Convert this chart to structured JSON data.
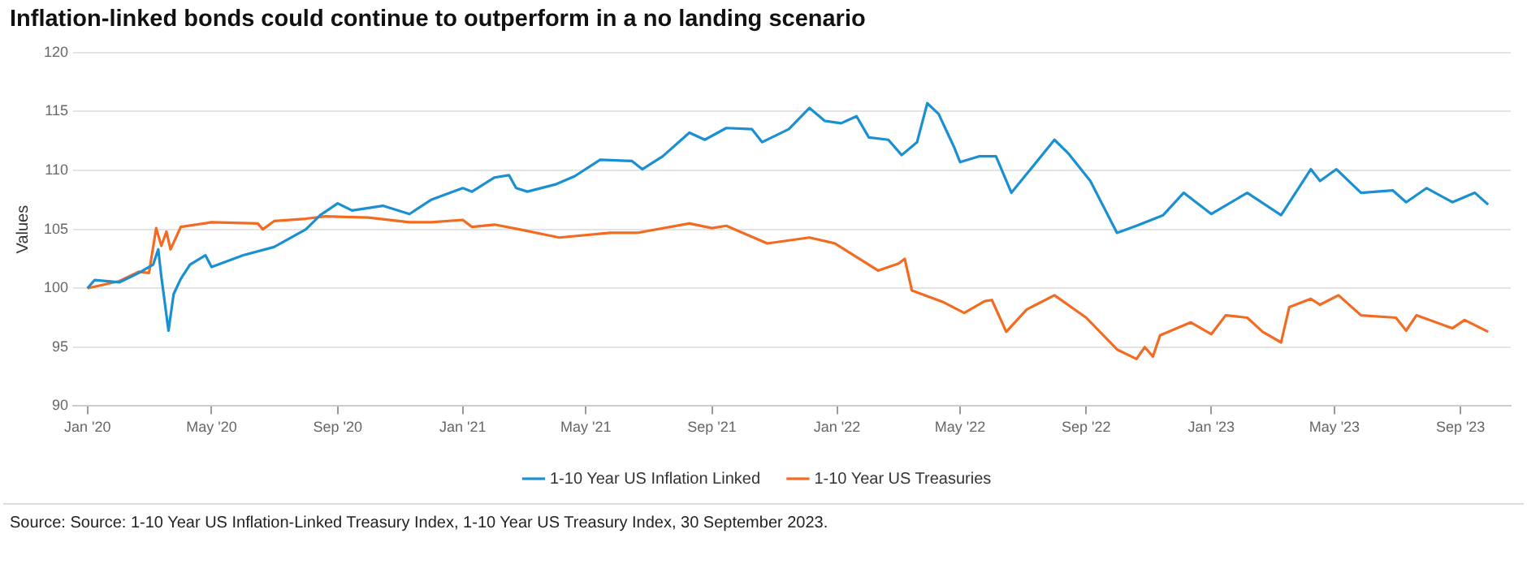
{
  "chart_data": {
    "type": "line",
    "title": "Inflation-linked bonds could continue to outperform in a no landing scenario",
    "ylabel": "Values",
    "xlim": [
      "2019-12-18",
      "2023-10-20"
    ],
    "xticks": [
      {
        "value": "2020-01-01",
        "label": "Jan '20"
      },
      {
        "value": "2020-05-01",
        "label": "May '20"
      },
      {
        "value": "2020-09-01",
        "label": "Sep '20"
      },
      {
        "value": "2021-01-01",
        "label": "Jan '21"
      },
      {
        "value": "2021-05-01",
        "label": "May '21"
      },
      {
        "value": "2021-09-01",
        "label": "Sep '21"
      },
      {
        "value": "2022-01-01",
        "label": "Jan '22"
      },
      {
        "value": "2022-05-01",
        "label": "May '22"
      },
      {
        "value": "2022-09-01",
        "label": "Sep '22"
      },
      {
        "value": "2023-01-01",
        "label": "Jan '23"
      },
      {
        "value": "2023-05-01",
        "label": "May '23"
      },
      {
        "value": "2023-09-01",
        "label": "Sep '23"
      }
    ],
    "ylim": [
      90,
      120
    ],
    "yticks": [
      90,
      95,
      100,
      105,
      110,
      115,
      120
    ],
    "grid": "y",
    "legend": "bottom",
    "marker": "none",
    "line_style": "solid",
    "series": [
      {
        "name": "1-10 Year US Inflation Linked",
        "color": "#1a8fd1",
        "x": [
          "2020-01-01",
          "2020-01-08",
          "2020-02-01",
          "2020-02-20",
          "2020-03-05",
          "2020-03-10",
          "2020-03-13",
          "2020-03-20",
          "2020-03-25",
          "2020-04-01",
          "2020-04-10",
          "2020-04-25",
          "2020-05-01",
          "2020-06-01",
          "2020-07-01",
          "2020-08-01",
          "2020-08-15",
          "2020-09-01",
          "2020-09-15",
          "2020-10-15",
          "2020-11-10",
          "2020-12-01",
          "2021-01-01",
          "2021-01-10",
          "2021-02-01",
          "2021-02-15",
          "2021-02-22",
          "2021-03-05",
          "2021-04-01",
          "2021-04-20",
          "2021-05-15",
          "2021-06-15",
          "2021-06-25",
          "2021-07-15",
          "2021-08-10",
          "2021-08-25",
          "2021-09-15",
          "2021-10-10",
          "2021-10-20",
          "2021-11-15",
          "2021-12-05",
          "2021-12-20",
          "2022-01-05",
          "2022-01-20",
          "2022-02-01",
          "2022-02-20",
          "2022-03-05",
          "2022-03-20",
          "2022-03-30",
          "2022-04-10",
          "2022-04-25",
          "2022-05-01",
          "2022-05-20",
          "2022-06-05",
          "2022-06-20",
          "2022-07-05",
          "2022-08-01",
          "2022-08-15",
          "2022-09-05",
          "2022-10-01",
          "2022-10-20",
          "2022-11-15",
          "2022-12-05",
          "2023-01-01",
          "2023-02-05",
          "2023-03-10",
          "2023-04-08",
          "2023-04-17",
          "2023-05-03",
          "2023-05-27",
          "2023-06-27",
          "2023-07-10",
          "2023-07-30",
          "2023-08-24",
          "2023-09-15",
          "2023-09-28"
        ],
        "values": [
          100,
          100.7,
          100.5,
          101.3,
          102,
          103.3,
          101,
          96.4,
          99.5,
          100.8,
          102,
          102.8,
          101.8,
          102.8,
          103.5,
          105,
          106.2,
          107.2,
          106.6,
          107,
          106.3,
          107.5,
          108.5,
          108.2,
          109.4,
          109.6,
          108.5,
          108.2,
          108.8,
          109.5,
          110.9,
          110.8,
          110.1,
          111.2,
          113.2,
          112.6,
          113.6,
          113.5,
          112.4,
          113.5,
          115.3,
          114.2,
          114,
          114.6,
          112.8,
          112.6,
          111.3,
          112.4,
          115.7,
          114.8,
          112,
          110.7,
          111.2,
          111.2,
          108.1,
          109.7,
          112.6,
          111.4,
          109.1,
          104.7,
          105.3,
          106.2,
          108.1,
          106.3,
          108.1,
          106.2,
          110.1,
          109.1,
          110.1,
          108.1,
          108.3,
          107.3,
          108.5,
          107.3,
          108.1,
          107.1
        ]
      },
      {
        "name": "1-10 Year US Treasuries",
        "color": "#f26b21",
        "x": [
          "2020-01-01",
          "2020-02-01",
          "2020-02-20",
          "2020-03-01",
          "2020-03-08",
          "2020-03-13",
          "2020-03-18",
          "2020-03-22",
          "2020-04-01",
          "2020-05-01",
          "2020-06-15",
          "2020-06-20",
          "2020-07-01",
          "2020-08-01",
          "2020-08-20",
          "2020-10-01",
          "2020-11-10",
          "2020-12-01",
          "2021-01-01",
          "2021-01-10",
          "2021-02-01",
          "2021-02-25",
          "2021-04-05",
          "2021-05-25",
          "2021-06-20",
          "2021-08-10",
          "2021-09-01",
          "2021-09-15",
          "2021-10-01",
          "2021-10-25",
          "2021-12-05",
          "2021-12-30",
          "2022-02-10",
          "2022-03-02",
          "2022-03-08",
          "2022-03-15",
          "2022-04-15",
          "2022-05-05",
          "2022-05-25",
          "2022-06-01",
          "2022-06-15",
          "2022-07-05",
          "2022-08-01",
          "2022-09-01",
          "2022-10-01",
          "2022-10-20",
          "2022-10-28",
          "2022-11-05",
          "2022-11-12",
          "2022-12-12",
          "2023-01-01",
          "2023-01-15",
          "2023-02-05",
          "2023-02-20",
          "2023-03-10",
          "2023-03-18",
          "2023-04-08",
          "2023-04-17",
          "2023-05-05",
          "2023-05-27",
          "2023-06-30",
          "2023-07-10",
          "2023-07-20",
          "2023-08-24",
          "2023-09-05",
          "2023-09-28"
        ],
        "values": [
          100,
          100.6,
          101.4,
          101.3,
          105.1,
          103.6,
          104.8,
          103.3,
          105.2,
          105.6,
          105.5,
          105,
          105.7,
          105.9,
          106.1,
          106,
          105.6,
          105.6,
          105.8,
          105.2,
          105.4,
          105,
          104.3,
          104.7,
          104.7,
          105.5,
          105.1,
          105.3,
          104.7,
          103.8,
          104.3,
          103.8,
          101.5,
          102.1,
          102.5,
          99.8,
          98.8,
          97.9,
          98.9,
          99,
          96.3,
          98.2,
          99.4,
          97.5,
          94.8,
          94,
          95,
          94.2,
          96,
          97.1,
          96.1,
          97.7,
          97.5,
          96.3,
          95.4,
          98.4,
          99.1,
          98.6,
          99.4,
          97.7,
          97.5,
          96.4,
          97.7,
          96.6,
          97.3,
          96.3
        ]
      }
    ],
    "annotations": [
      "Source: Source: 1-10 Year US Inflation-Linked Treasury Index, 1-10 Year US Treasury Index, 30 September 2023."
    ]
  }
}
